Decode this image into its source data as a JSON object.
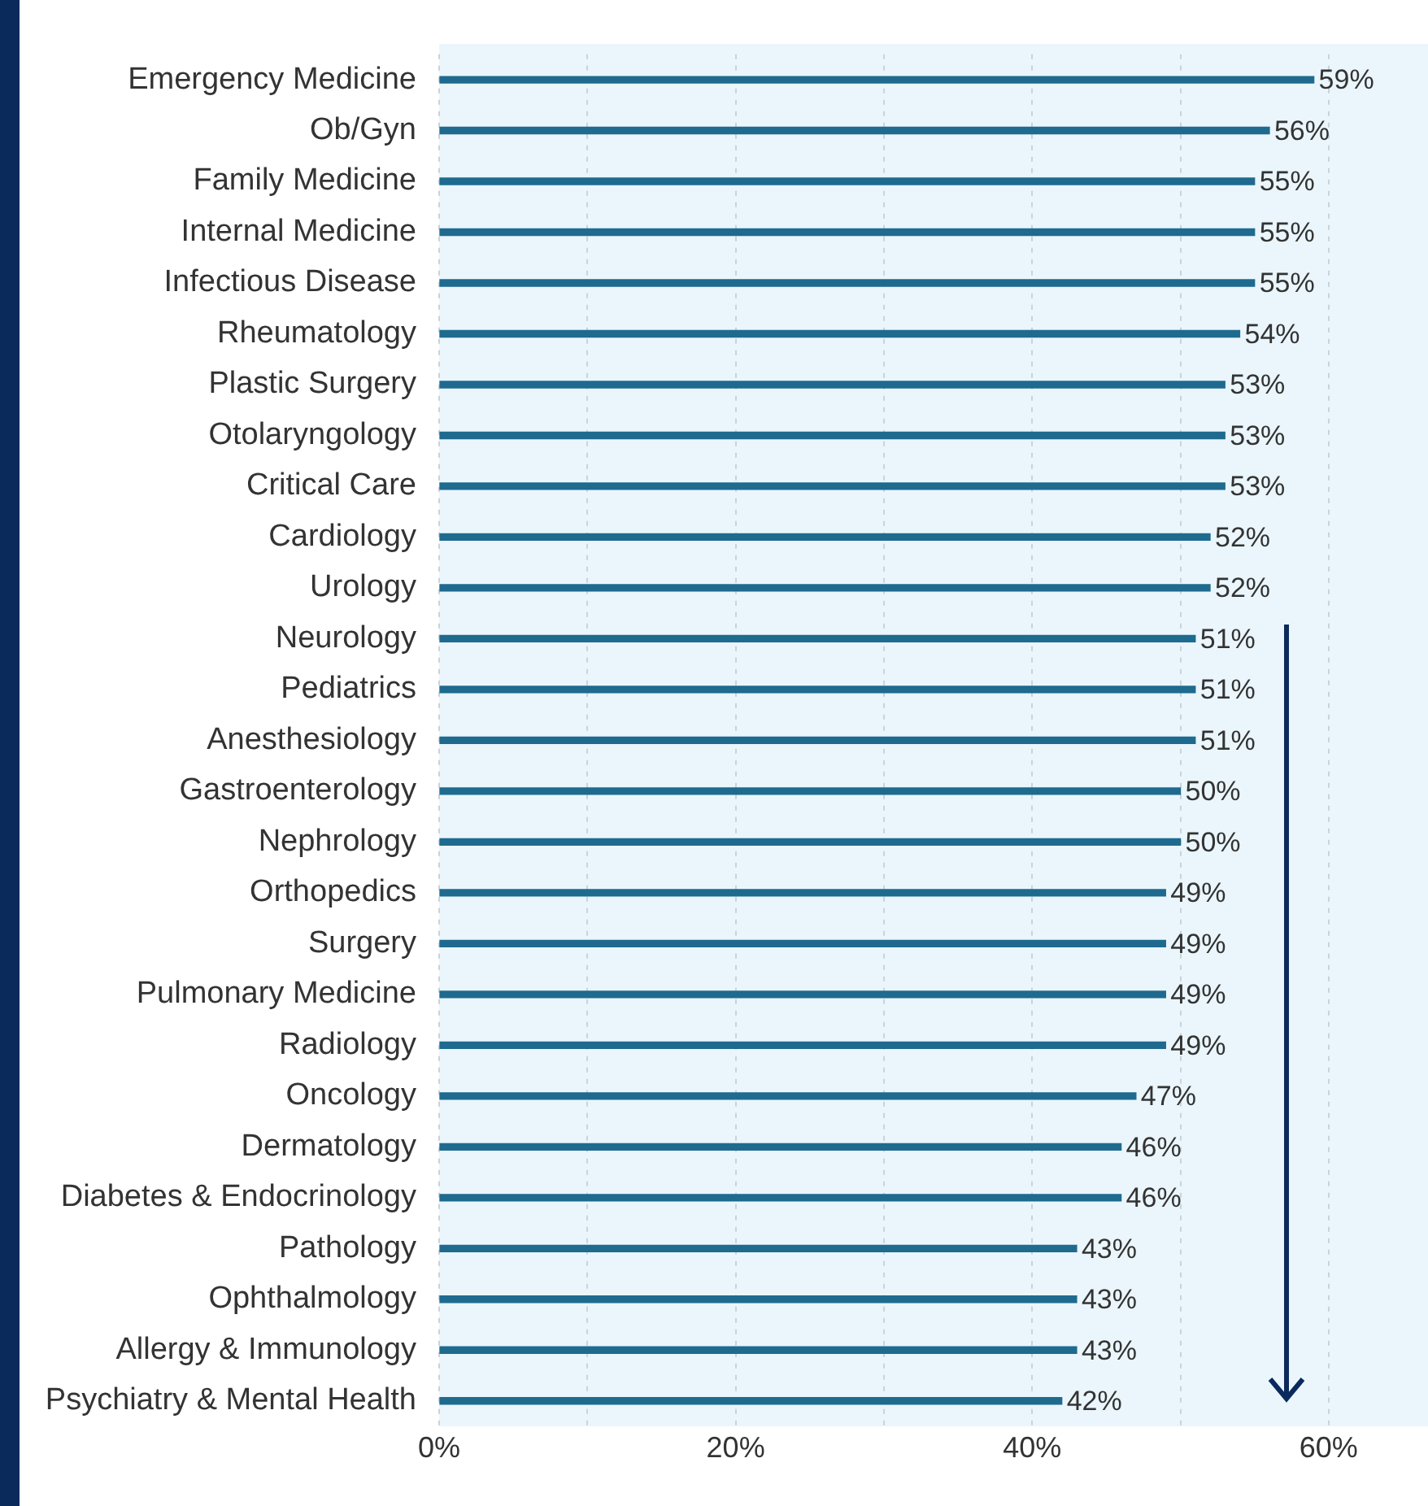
{
  "chart_data": {
    "type": "bar",
    "orientation": "horizontal",
    "categories": [
      "Emergency Medicine",
      "Ob/Gyn",
      "Family Medicine",
      "Internal Medicine",
      "Infectious Disease",
      "Rheumatology",
      "Plastic Surgery",
      "Otolaryngology",
      "Critical Care",
      "Cardiology",
      "Urology",
      "Neurology",
      "Pediatrics",
      "Anesthesiology",
      "Gastroenterology",
      "Nephrology",
      "Orthopedics",
      "Surgery",
      "Pulmonary Medicine",
      "Radiology",
      "Oncology",
      "Dermatology",
      "Diabetes & Endocrinology",
      "Pathology",
      "Ophthalmology",
      "Allergy & Immunology",
      "Psychiatry & Mental Health"
    ],
    "values": [
      59,
      56,
      55,
      55,
      55,
      54,
      53,
      53,
      53,
      52,
      52,
      51,
      51,
      51,
      50,
      50,
      49,
      49,
      49,
      49,
      47,
      46,
      46,
      43,
      43,
      43,
      42
    ],
    "value_labels": [
      "59%",
      "56%",
      "55%",
      "55%",
      "55%",
      "54%",
      "53%",
      "53%",
      "53%",
      "52%",
      "52%",
      "51%",
      "51%",
      "51%",
      "50%",
      "50%",
      "49%",
      "49%",
      "49%",
      "49%",
      "47%",
      "46%",
      "46%",
      "43%",
      "43%",
      "43%",
      "42%"
    ],
    "color": "#1f6a8f",
    "xlim": [
      0,
      66.7
    ],
    "xticks": [
      {
        "value": 0,
        "label": "0%"
      },
      {
        "value": 10,
        "label": null
      },
      {
        "value": 20,
        "label": "20%"
      },
      {
        "value": 30,
        "label": null
      },
      {
        "value": 40,
        "label": "40%"
      },
      {
        "value": 50,
        "label": null
      },
      {
        "value": 60,
        "label": "60%"
      }
    ],
    "grid": "x",
    "legend": false
  }
}
